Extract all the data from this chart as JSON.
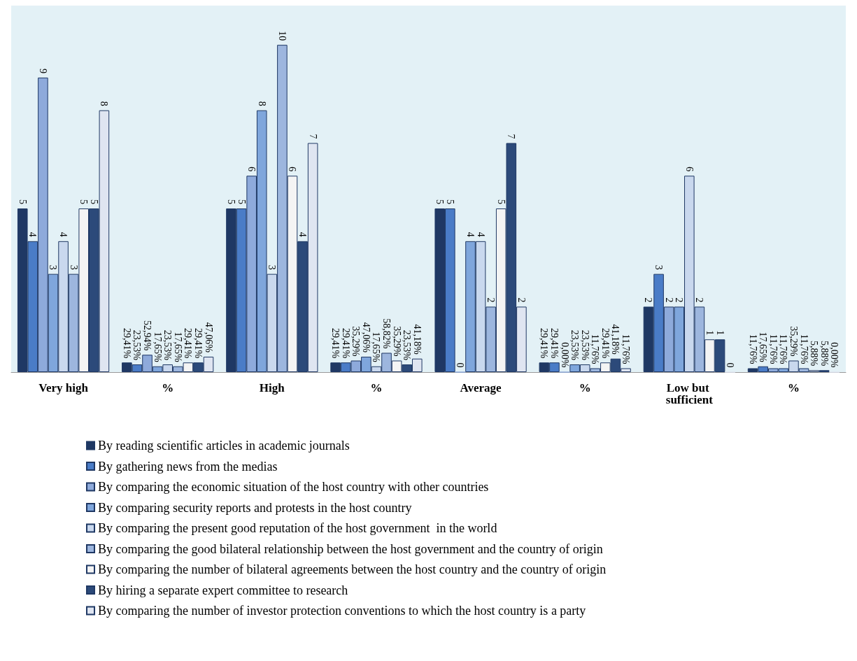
{
  "chart_data": {
    "type": "bar",
    "categories": [
      "Very high",
      "%",
      "High",
      "%",
      "Average",
      "%",
      "Low but sufficient",
      "%"
    ],
    "series": [
      {
        "name": "By reading scientific articles in academic journals",
        "color": "#1f3864",
        "values": [
          5,
          0.2941,
          5,
          0.2941,
          5,
          0.2941,
          2,
          0.1176
        ],
        "value_labels": [
          "5",
          "29,41%",
          "5",
          "29,41%",
          "5",
          "29,41%",
          "2",
          "11,76%"
        ]
      },
      {
        "name": "By gathering news from the medias",
        "color": "#4a7cc7",
        "values": [
          4,
          0.2353,
          5,
          0.2941,
          5,
          0.2941,
          3,
          0.1765
        ],
        "value_labels": [
          "4",
          "23,53%",
          "5",
          "29,41%",
          "5",
          "29,41%",
          "3",
          "17,65%"
        ]
      },
      {
        "name": "By comparing the economic situation of the host country with other countries",
        "color": "#8eaadb",
        "values": [
          9,
          0.5294,
          6,
          0.3529,
          0,
          0,
          2,
          0.1176
        ],
        "value_labels": [
          "9",
          "52,94%",
          "6",
          "35,29%",
          "0",
          "0,00%",
          "2",
          "11,76%"
        ]
      },
      {
        "name": "By comparing security reports and protests in the host country",
        "color": "#7fa6dc",
        "values": [
          3,
          0.1765,
          8,
          0.4706,
          4,
          0.2353,
          2,
          0.1176
        ],
        "value_labels": [
          "3",
          "17,65%",
          "8",
          "47,06%",
          "4",
          "23,53%",
          "2",
          "11,76%"
        ]
      },
      {
        "name": "By comparing the present good reputation of the host government  in the world",
        "color": "#c9d8ee",
        "values": [
          4,
          0.2353,
          3,
          0.1765,
          4,
          0.2353,
          6,
          0.3529
        ],
        "value_labels": [
          "4",
          "23,53%",
          "3",
          "17,65%",
          "4",
          "23,53%",
          "6",
          "35,29%"
        ]
      },
      {
        "name": "By comparing the good bilateral relationship between the host government and the country of origin",
        "color": "#9db6de",
        "values": [
          3,
          0.1765,
          10,
          0.5882,
          2,
          0.1176,
          2,
          0.1176
        ],
        "value_labels": [
          "3",
          "17,65%",
          "10",
          "58,82%",
          "2",
          "11,76%",
          "2",
          "11,76%"
        ]
      },
      {
        "name": "By comparing the number of bilateral agreements between the host country and the country of origin",
        "color": "#f4f4f4",
        "values": [
          5,
          0.2941,
          6,
          0.3529,
          5,
          0.2941,
          1,
          0.0588
        ],
        "value_labels": [
          "5",
          "29,41%",
          "6",
          "35,29%",
          "5",
          "29,41%",
          "1",
          "5,88%"
        ]
      },
      {
        "name": "By hiring a separate expert committee to research",
        "color": "#2c4a7a",
        "values": [
          5,
          0.2941,
          4,
          0.2353,
          7,
          0.4118,
          1,
          0.0588
        ],
        "value_labels": [
          "5",
          "29,41%",
          "4",
          "23,53%",
          "7",
          "41,18%",
          "1",
          "5,88%"
        ]
      },
      {
        "name": "By comparing the number of investor protection conventions to which the host country is a party",
        "color": "#dfe5f1",
        "values": [
          8,
          0.4706,
          7,
          0.4118,
          2,
          0.1176,
          0,
          0
        ],
        "value_labels": [
          "8",
          "47,06%",
          "7",
          "41,18%",
          "2",
          "11,76%",
          "0",
          "0,00%"
        ]
      }
    ],
    "legend": "bottom",
    "tick_labels": "x"
  }
}
